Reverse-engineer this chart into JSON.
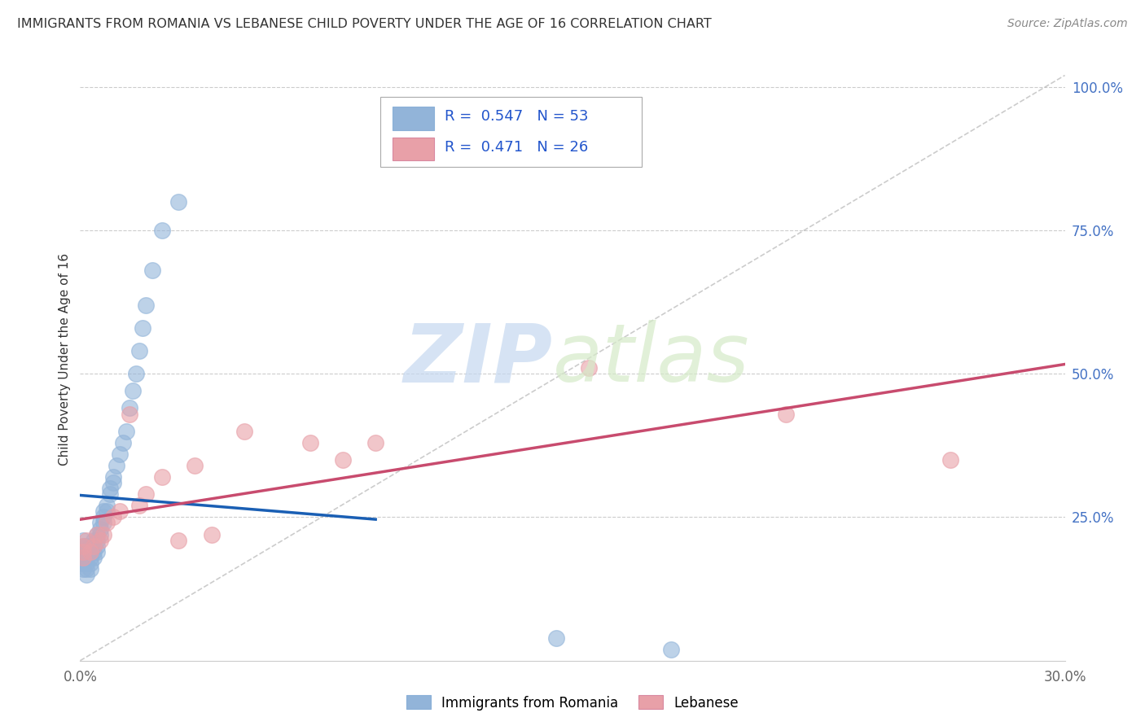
{
  "title": "IMMIGRANTS FROM ROMANIA VS LEBANESE CHILD POVERTY UNDER THE AGE OF 16 CORRELATION CHART",
  "source": "Source: ZipAtlas.com",
  "ylabel": "Child Poverty Under the Age of 16",
  "xlim": [
    0.0,
    0.3
  ],
  "ylim": [
    0.0,
    1.05
  ],
  "romania_color": "#92b4d9",
  "lebanese_color": "#e8a0a8",
  "romania_line_color": "#1a5fb4",
  "lebanese_line_color": "#c84b6e",
  "trendline_color": "#aaaaaa",
  "legend_R1": "0.547",
  "legend_N1": "53",
  "legend_R2": "0.471",
  "legend_N2": "26",
  "romania_scatter_x": [
    0.001,
    0.001,
    0.001,
    0.001,
    0.001,
    0.001,
    0.001,
    0.002,
    0.002,
    0.002,
    0.002,
    0.002,
    0.002,
    0.003,
    0.003,
    0.003,
    0.003,
    0.003,
    0.004,
    0.004,
    0.004,
    0.004,
    0.005,
    0.005,
    0.005,
    0.005,
    0.006,
    0.006,
    0.006,
    0.007,
    0.007,
    0.007,
    0.008,
    0.008,
    0.009,
    0.009,
    0.01,
    0.01,
    0.011,
    0.012,
    0.013,
    0.014,
    0.015,
    0.016,
    0.017,
    0.018,
    0.019,
    0.02,
    0.022,
    0.025,
    0.03,
    0.145,
    0.18
  ],
  "romania_scatter_y": [
    0.17,
    0.18,
    0.19,
    0.2,
    0.21,
    0.17,
    0.16,
    0.18,
    0.19,
    0.2,
    0.17,
    0.15,
    0.16,
    0.18,
    0.19,
    0.2,
    0.17,
    0.16,
    0.19,
    0.2,
    0.21,
    0.18,
    0.2,
    0.21,
    0.22,
    0.19,
    0.22,
    0.23,
    0.24,
    0.25,
    0.24,
    0.26,
    0.27,
    0.26,
    0.29,
    0.3,
    0.31,
    0.32,
    0.34,
    0.36,
    0.38,
    0.4,
    0.44,
    0.47,
    0.5,
    0.54,
    0.58,
    0.62,
    0.68,
    0.75,
    0.8,
    0.04,
    0.02
  ],
  "lebanese_scatter_x": [
    0.001,
    0.001,
    0.001,
    0.002,
    0.003,
    0.004,
    0.005,
    0.006,
    0.007,
    0.008,
    0.01,
    0.012,
    0.015,
    0.018,
    0.02,
    0.025,
    0.03,
    0.035,
    0.04,
    0.05,
    0.07,
    0.08,
    0.09,
    0.155,
    0.215,
    0.265
  ],
  "lebanese_scatter_y": [
    0.18,
    0.19,
    0.2,
    0.21,
    0.19,
    0.2,
    0.22,
    0.21,
    0.22,
    0.24,
    0.25,
    0.26,
    0.43,
    0.27,
    0.29,
    0.32,
    0.21,
    0.34,
    0.22,
    0.4,
    0.38,
    0.35,
    0.38,
    0.51,
    0.43,
    0.35
  ],
  "background_color": "#ffffff",
  "grid_color": "#cccccc"
}
